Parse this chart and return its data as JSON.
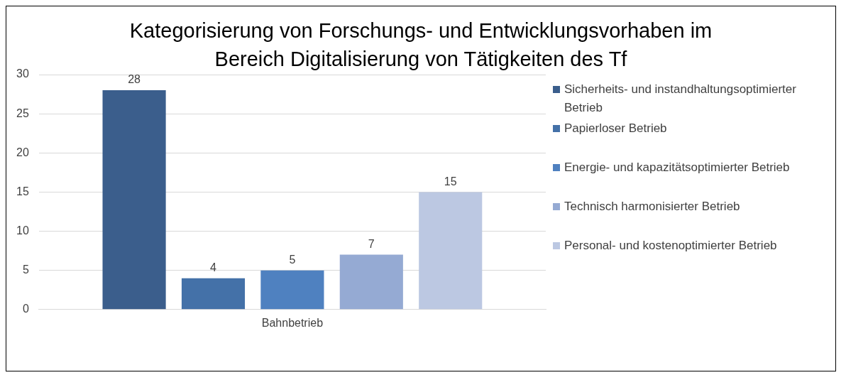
{
  "chart_data": {
    "type": "bar",
    "title": "Kategorisierung von Forschungs- und Entwicklungsvorhaben im Bereich Digitalisierung von Tätigkeiten des Tf",
    "categories": [
      "Bahnbetrieb"
    ],
    "series": [
      {
        "name": "Sicherheits- und instandhaltungsoptimierter Betrieb",
        "color": "#3b5e8c",
        "values": [
          28
        ]
      },
      {
        "name": "Papierloser Betrieb",
        "color": "#4471a8",
        "values": [
          4
        ]
      },
      {
        "name": "Energie- und kapazitätsoptimierter Betrieb",
        "color": "#4f81c0",
        "values": [
          5
        ]
      },
      {
        "name": "Technisch harmonisierter Betrieb",
        "color": "#95aad3",
        "values": [
          7
        ]
      },
      {
        "name": "Personal- und kostenoptimierter Betrieb",
        "color": "#bcc8e2",
        "values": [
          15
        ]
      }
    ],
    "ylim": [
      0,
      30
    ],
    "yticks": [
      0,
      5,
      10,
      15,
      20,
      25,
      30
    ],
    "grid": "y",
    "legend": "right",
    "data_labels": true
  }
}
